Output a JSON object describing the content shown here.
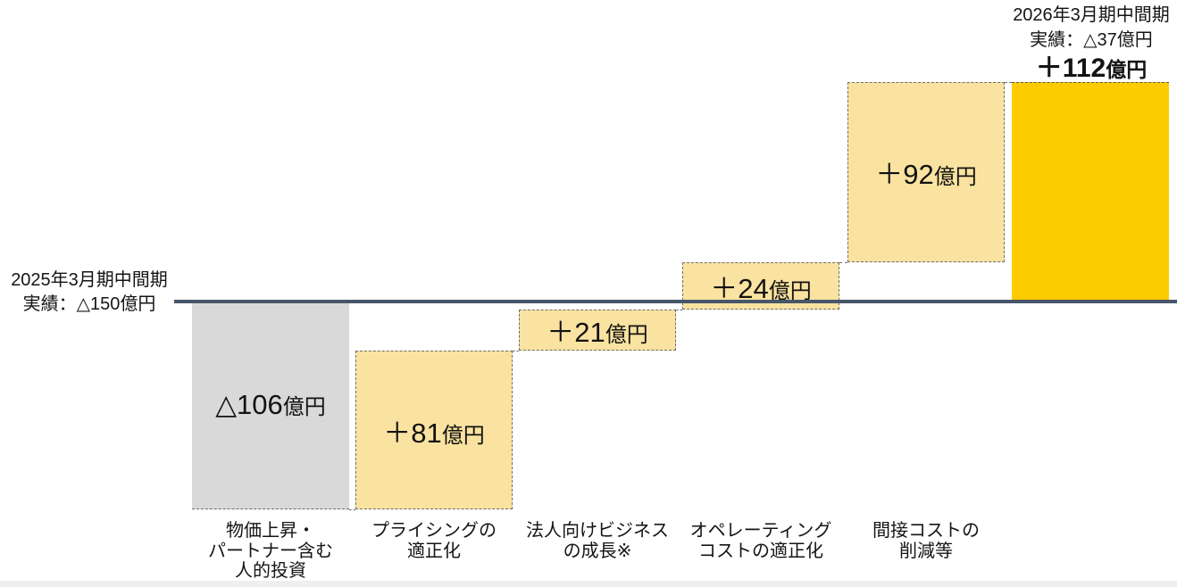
{
  "page": {
    "background": "#ffffff",
    "footer_strip_color": "#efefef"
  },
  "chart_data": {
    "type": "waterfall",
    "title": "",
    "unit": "億円",
    "grid": false,
    "legend": false,
    "axis": {
      "baseline_value": -150,
      "baseline_color": "#47566a"
    },
    "start_annotation": {
      "line1": "2025年3月期中間期",
      "line2": "実績：△150億円"
    },
    "end_annotation": {
      "line1": "2026年3月期中間期",
      "line2": "実績：△37億円",
      "total_num": "＋112",
      "total_unit": "億円"
    },
    "bars": [
      {
        "category_lines": [
          "物価上昇・",
          "パートナー含む",
          "人的投資"
        ],
        "value": -106,
        "display_num": "△106",
        "display_unit": "億円",
        "fill": "#d9d9d9",
        "kind": "decrease"
      },
      {
        "category_lines": [
          "プライシングの",
          "適正化"
        ],
        "value": 81,
        "display_num": "＋81",
        "display_unit": "億円",
        "fill": "#fae3a0",
        "kind": "increase"
      },
      {
        "category_lines": [
          "法人向けビジネス",
          "の成長※"
        ],
        "value": 21,
        "display_num": "＋21",
        "display_unit": "億円",
        "fill": "#fae3a0",
        "kind": "increase"
      },
      {
        "category_lines": [
          "オペレーティング",
          "コストの適正化"
        ],
        "value": 24,
        "display_num": "＋24",
        "display_unit": "億円",
        "fill": "#fae3a0",
        "kind": "increase"
      },
      {
        "category_lines": [
          "間接コストの",
          "削減等"
        ],
        "value": 92,
        "display_num": "＋92",
        "display_unit": "億円",
        "fill": "#fae3a0",
        "kind": "increase"
      },
      {
        "category_lines": [],
        "value": 112,
        "display_num": "",
        "display_unit": "",
        "fill": "#fccb00",
        "kind": "total"
      }
    ]
  }
}
